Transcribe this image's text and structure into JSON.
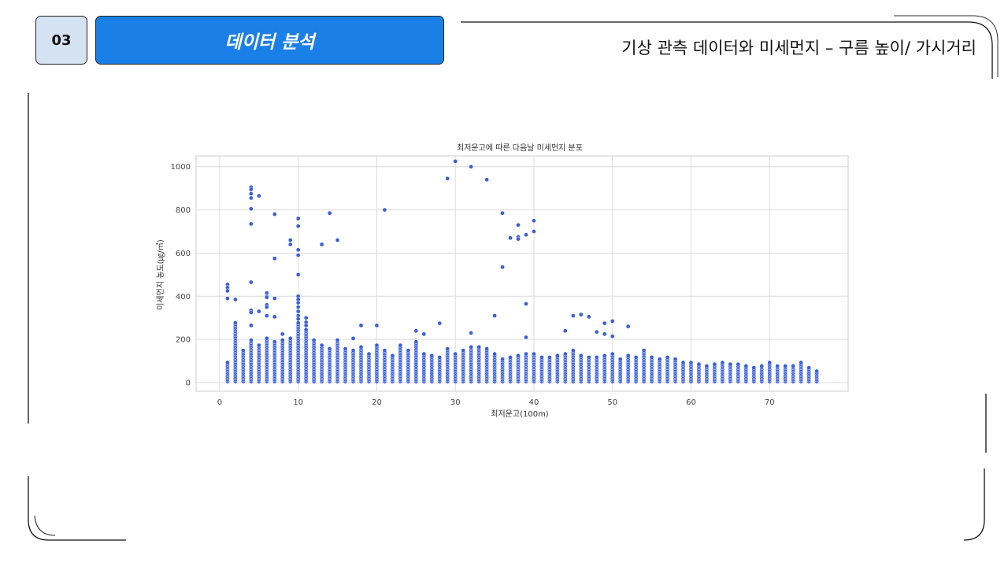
{
  "badge": {
    "number": "03"
  },
  "section": {
    "label": "데이터 분석"
  },
  "slide_title": "기상 관측 데이터와 미세먼지 – 구름 높이/ 가시거리",
  "colors": {
    "accent": "#1a7fe6",
    "point": "#3a5fdc",
    "badge_bg": "#d5e2f2"
  },
  "chart_data": {
    "type": "scatter",
    "title": "최저운고에 따른 다음날 미세먼지 분포",
    "xlabel": "최저운고(100m)",
    "ylabel": "미세먼지 농도(㎍/㎥)",
    "xlim": [
      -3,
      80
    ],
    "ylim": [
      -40,
      1050
    ],
    "x_ticks": [
      "0",
      "10",
      "20",
      "30",
      "40",
      "50",
      "60",
      "70"
    ],
    "y_ticks": [
      "0",
      "200",
      "400",
      "600",
      "800",
      "1000"
    ],
    "grid": true,
    "column_x": [
      1,
      2,
      3,
      4,
      5,
      6,
      7,
      8,
      9,
      10,
      11,
      12,
      13,
      14,
      15,
      16,
      17,
      18,
      19,
      20,
      21,
      22,
      23,
      24,
      25,
      26,
      27,
      28,
      29,
      30,
      31,
      32,
      33,
      34,
      35,
      36,
      37,
      38,
      39,
      40,
      41,
      42,
      43,
      44,
      45,
      46,
      47,
      48,
      49,
      50,
      51,
      52,
      53,
      54,
      55,
      56,
      57,
      58,
      59,
      60,
      61,
      62,
      63,
      64,
      65,
      66,
      67,
      68,
      69,
      70,
      71,
      72,
      73,
      74,
      75,
      76
    ],
    "column_max": [
      95,
      280,
      150,
      200,
      180,
      210,
      190,
      200,
      210,
      280,
      250,
      200,
      180,
      160,
      200,
      160,
      150,
      170,
      140,
      180,
      150,
      130,
      180,
      150,
      190,
      140,
      130,
      120,
      160,
      140,
      150,
      170,
      170,
      160,
      140,
      110,
      120,
      130,
      140,
      140,
      120,
      120,
      130,
      140,
      150,
      130,
      120,
      120,
      130,
      140,
      110,
      130,
      120,
      150,
      120,
      110,
      120,
      110,
      100,
      100,
      90,
      80,
      90,
      100,
      90,
      90,
      80,
      70,
      80,
      100,
      80,
      80,
      80,
      100,
      70,
      60
    ],
    "outliers": [
      {
        "x": 1,
        "y": 455
      },
      {
        "x": 1,
        "y": 440
      },
      {
        "x": 1,
        "y": 425
      },
      {
        "x": 1,
        "y": 390
      },
      {
        "x": 2,
        "y": 385
      },
      {
        "x": 4,
        "y": 905
      },
      {
        "x": 4,
        "y": 895
      },
      {
        "x": 4,
        "y": 875
      },
      {
        "x": 4,
        "y": 855
      },
      {
        "x": 4,
        "y": 805
      },
      {
        "x": 4,
        "y": 735
      },
      {
        "x": 4,
        "y": 465
      },
      {
        "x": 4,
        "y": 335
      },
      {
        "x": 4,
        "y": 325
      },
      {
        "x": 4,
        "y": 265
      },
      {
        "x": 5,
        "y": 865
      },
      {
        "x": 5,
        "y": 330
      },
      {
        "x": 6,
        "y": 415
      },
      {
        "x": 6,
        "y": 400
      },
      {
        "x": 6,
        "y": 395
      },
      {
        "x": 6,
        "y": 360
      },
      {
        "x": 6,
        "y": 350
      },
      {
        "x": 6,
        "y": 310
      },
      {
        "x": 7,
        "y": 780
      },
      {
        "x": 7,
        "y": 575
      },
      {
        "x": 7,
        "y": 390
      },
      {
        "x": 7,
        "y": 305
      },
      {
        "x": 8,
        "y": 225
      },
      {
        "x": 9,
        "y": 660
      },
      {
        "x": 9,
        "y": 640
      },
      {
        "x": 10,
        "y": 760
      },
      {
        "x": 10,
        "y": 725
      },
      {
        "x": 10,
        "y": 615
      },
      {
        "x": 10,
        "y": 590
      },
      {
        "x": 10,
        "y": 500
      },
      {
        "x": 10,
        "y": 400
      },
      {
        "x": 10,
        "y": 385
      },
      {
        "x": 10,
        "y": 370
      },
      {
        "x": 10,
        "y": 350
      },
      {
        "x": 10,
        "y": 330
      },
      {
        "x": 10,
        "y": 310
      },
      {
        "x": 10,
        "y": 295
      },
      {
        "x": 11,
        "y": 300
      },
      {
        "x": 11,
        "y": 280
      },
      {
        "x": 11,
        "y": 265
      },
      {
        "x": 13,
        "y": 640
      },
      {
        "x": 14,
        "y": 785
      },
      {
        "x": 15,
        "y": 660
      },
      {
        "x": 17,
        "y": 205
      },
      {
        "x": 18,
        "y": 265
      },
      {
        "x": 20,
        "y": 265
      },
      {
        "x": 21,
        "y": 800
      },
      {
        "x": 25,
        "y": 240
      },
      {
        "x": 26,
        "y": 225
      },
      {
        "x": 28,
        "y": 275
      },
      {
        "x": 29,
        "y": 945
      },
      {
        "x": 30,
        "y": 1025
      },
      {
        "x": 32,
        "y": 1000
      },
      {
        "x": 32,
        "y": 230
      },
      {
        "x": 34,
        "y": 940
      },
      {
        "x": 35,
        "y": 310
      },
      {
        "x": 36,
        "y": 785
      },
      {
        "x": 36,
        "y": 535
      },
      {
        "x": 37,
        "y": 670
      },
      {
        "x": 38,
        "y": 730
      },
      {
        "x": 38,
        "y": 675
      },
      {
        "x": 38,
        "y": 665
      },
      {
        "x": 39,
        "y": 685
      },
      {
        "x": 39,
        "y": 365
      },
      {
        "x": 39,
        "y": 210
      },
      {
        "x": 40,
        "y": 750
      },
      {
        "x": 40,
        "y": 700
      },
      {
        "x": 44,
        "y": 240
      },
      {
        "x": 45,
        "y": 310
      },
      {
        "x": 46,
        "y": 315
      },
      {
        "x": 47,
        "y": 305
      },
      {
        "x": 48,
        "y": 235
      },
      {
        "x": 49,
        "y": 275
      },
      {
        "x": 49,
        "y": 225
      },
      {
        "x": 50,
        "y": 285
      },
      {
        "x": 50,
        "y": 215
      },
      {
        "x": 52,
        "y": 260
      }
    ]
  }
}
